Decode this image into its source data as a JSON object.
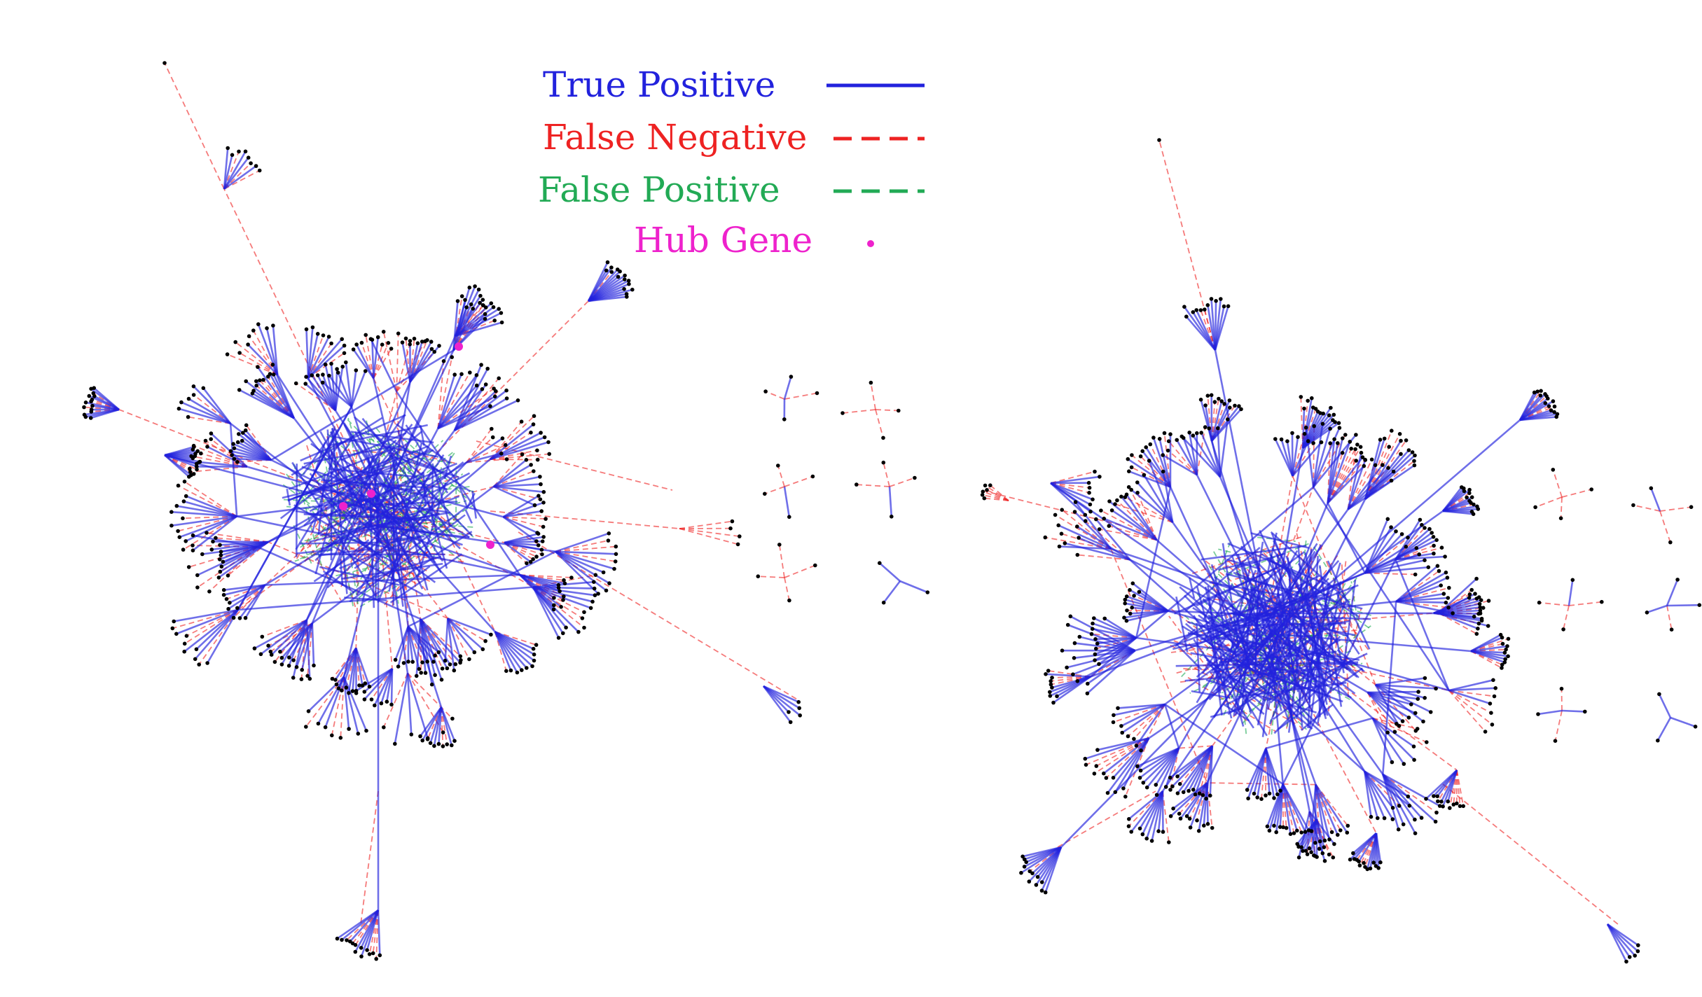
{
  "legend": {
    "items": [
      {
        "label": "True Positive",
        "color": "#2222dd",
        "line": "solid"
      },
      {
        "label": "False Negative",
        "color": "#ee2222",
        "line": "dashed"
      },
      {
        "label": "False Positive",
        "color": "#22aa55",
        "line": "dashed"
      },
      {
        "label": "Hub Gene",
        "color": "#ee22cc",
        "line": "dot"
      }
    ]
  },
  "colors": {
    "true_positive": "#2222dd",
    "false_negative": "#ee2222",
    "false_positive": "#22aa55",
    "hub_gene": "#ee22cc",
    "node": "#000000"
  },
  "networks": [
    {
      "name": "left-network",
      "hub_count": 4
    },
    {
      "name": "right-network",
      "hub_count": 0
    }
  ]
}
